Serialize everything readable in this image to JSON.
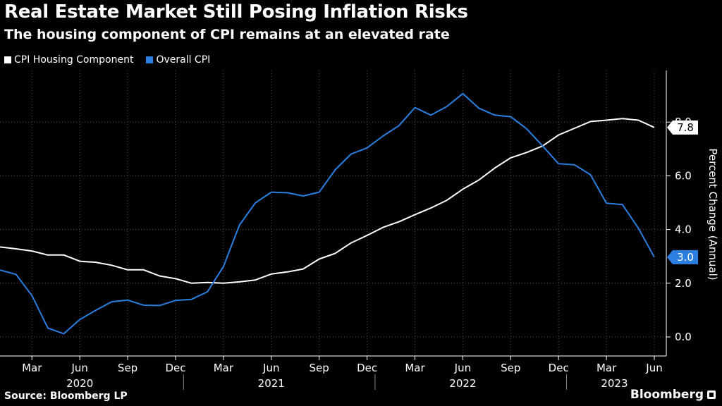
{
  "header": {
    "title": "Real Estate Market Still Posing Inflation Risks",
    "subtitle": "The housing component of CPI remains at an elevated rate"
  },
  "footer": {
    "source": "Source: Bloomberg LP",
    "brand": "Bloomberg"
  },
  "colors": {
    "background": "#000000",
    "housing": "#ffffff",
    "overall": "#2b7fe0",
    "grid": "#555555"
  },
  "chart_data": {
    "type": "line",
    "title": "Real Estate Market Still Posing Inflation Risks",
    "subtitle": "The housing component of CPI remains at an elevated rate",
    "ylabel": "Percent Change (Annual)",
    "xlabel": "",
    "ylim": [
      -0.5,
      9.5
    ],
    "yticks": [
      0.0,
      2.0,
      4.0,
      6.0,
      8.0
    ],
    "ytick_labels": [
      "0.0",
      "2.0",
      "4.0",
      "6.0",
      "8.0"
    ],
    "grid": true,
    "legend_position": "top-left",
    "x_start": "2020-01",
    "x_end": "2023-06",
    "x_tick_labels": [
      {
        "label": "Mar",
        "month_index": 2
      },
      {
        "label": "Jun",
        "month_index": 5
      },
      {
        "label": "Sep",
        "month_index": 8
      },
      {
        "label": "Dec",
        "month_index": 11
      },
      {
        "label": "Mar",
        "month_index": 14
      },
      {
        "label": "Jun",
        "month_index": 17
      },
      {
        "label": "Sep",
        "month_index": 20
      },
      {
        "label": "Dec",
        "month_index": 23
      },
      {
        "label": "Mar",
        "month_index": 26
      },
      {
        "label": "Jun",
        "month_index": 29
      },
      {
        "label": "Sep",
        "month_index": 32
      },
      {
        "label": "Dec",
        "month_index": 35
      },
      {
        "label": "Mar",
        "month_index": 38
      },
      {
        "label": "Jun",
        "month_index": 41
      }
    ],
    "years": [
      {
        "label": "2020",
        "month_index": 5
      },
      {
        "label": "2021",
        "month_index": 17
      },
      {
        "label": "2022",
        "month_index": 29
      },
      {
        "label": "2023",
        "month_index": 38.5
      }
    ],
    "year_separators": [
      11.5,
      23.5,
      35.5
    ],
    "series": [
      {
        "name": "CPI Housing Component",
        "color": "#ffffff",
        "last_value_label": "7.8",
        "values": [
          3.35,
          3.28,
          3.2,
          3.05,
          3.05,
          2.82,
          2.78,
          2.67,
          2.5,
          2.5,
          2.27,
          2.17,
          2.0,
          2.03,
          2.0,
          2.05,
          2.12,
          2.34,
          2.42,
          2.53,
          2.9,
          3.11,
          3.5,
          3.78,
          4.08,
          4.29,
          4.55,
          4.8,
          5.09,
          5.5,
          5.84,
          6.29,
          6.67,
          6.87,
          7.11,
          7.52,
          7.77,
          8.02,
          8.07,
          8.13,
          8.07,
          7.8
        ]
      },
      {
        "name": "Overall CPI",
        "color": "#2b7fe0",
        "last_value_label": "3.0",
        "values": [
          2.49,
          2.33,
          1.54,
          0.33,
          0.12,
          0.65,
          0.99,
          1.31,
          1.37,
          1.18,
          1.17,
          1.36,
          1.4,
          1.68,
          2.62,
          4.16,
          4.99,
          5.39,
          5.37,
          5.25,
          5.39,
          6.22,
          6.81,
          7.04,
          7.48,
          7.87,
          8.54,
          8.26,
          8.58,
          9.06,
          8.52,
          8.26,
          8.2,
          7.75,
          7.11,
          6.45,
          6.41,
          6.04,
          4.98,
          4.93,
          4.05,
          2.97
        ]
      }
    ]
  }
}
